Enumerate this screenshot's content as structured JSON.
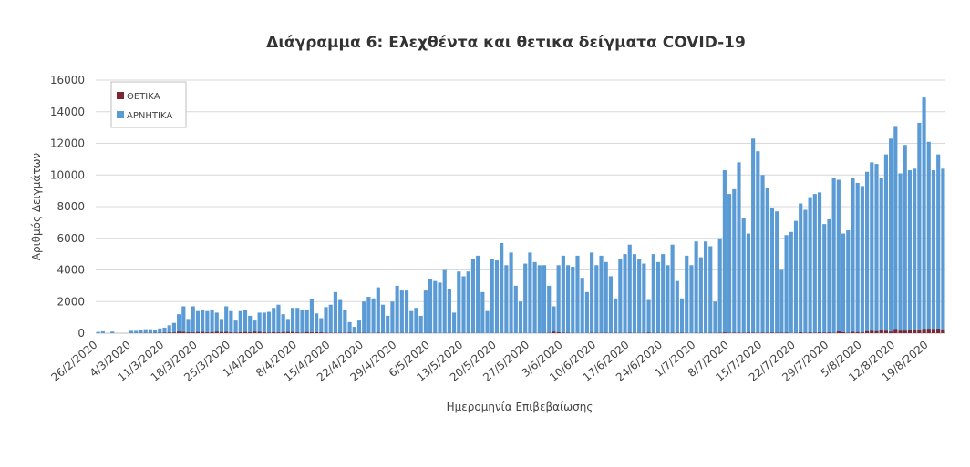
{
  "chart_data": {
    "type": "bar",
    "title": "Διάγραμμα 6: Ελεχθέντα και θετικα δείγματα COVID-19",
    "x_label": "Ημερομηνία Επιβεβαίωσης",
    "y_label": "Αριθμός Δειγμάτων",
    "ylim": [
      0,
      16000
    ],
    "yticks": [
      0,
      2000,
      4000,
      6000,
      8000,
      10000,
      12000,
      14000,
      16000
    ],
    "grid": true,
    "legend": "top-left",
    "categories": [
      "26/2/2020",
      null,
      null,
      null,
      null,
      null,
      null,
      "4/3/2020",
      null,
      null,
      null,
      null,
      null,
      null,
      "11/3/2020",
      null,
      null,
      null,
      null,
      null,
      null,
      "18/3/2020",
      null,
      null,
      null,
      null,
      null,
      null,
      "25/3/2020",
      null,
      null,
      null,
      null,
      null,
      null,
      "1/4/2020",
      null,
      null,
      null,
      null,
      null,
      null,
      "8/4/2020",
      null,
      null,
      null,
      null,
      null,
      null,
      "15/4/2020",
      null,
      null,
      null,
      null,
      null,
      null,
      "22/4/2020",
      null,
      null,
      null,
      null,
      null,
      null,
      "29/4/2020",
      null,
      null,
      null,
      null,
      null,
      null,
      "6/5/2020",
      null,
      null,
      null,
      null,
      null,
      null,
      "13/5/2020",
      null,
      null,
      null,
      null,
      null,
      null,
      "20/5/2020",
      null,
      null,
      null,
      null,
      null,
      null,
      "27/5/2020",
      null,
      null,
      null,
      null,
      null,
      null,
      "3/6/2020",
      null,
      null,
      null,
      null,
      null,
      null,
      "10/6/2020",
      null,
      null,
      null,
      null,
      null,
      null,
      "17/6/2020",
      null,
      null,
      null,
      null,
      null,
      null,
      "24/6/2020",
      null,
      null,
      null,
      null,
      null,
      null,
      "1/7/2020",
      null,
      null,
      null,
      null,
      null,
      null,
      "8/7/2020",
      null,
      null,
      null,
      null,
      null,
      null,
      "15/7/2020",
      null,
      null,
      null,
      null,
      null,
      null,
      "22/7/2020",
      null,
      null,
      null,
      null,
      null,
      null,
      "29/7/2020",
      null,
      null,
      null,
      null,
      null,
      null,
      "5/8/2020",
      null,
      null,
      null,
      null,
      null,
      null,
      "12/8/2020",
      null,
      null,
      null,
      null,
      null,
      null,
      "19/8/2020",
      null,
      null,
      null
    ],
    "series": [
      {
        "name": "ΑΡΝΗΤΙΚΑ",
        "color": "#5b9bd5",
        "values": [
          80,
          120,
          0,
          100,
          0,
          0,
          0,
          150,
          150,
          200,
          250,
          250,
          200,
          300,
          350,
          500,
          650,
          1200,
          1700,
          900,
          1700,
          1400,
          1500,
          1400,
          1500,
          1300,
          900,
          1700,
          1400,
          800,
          1400,
          1450,
          1100,
          800,
          1300,
          1300,
          1350,
          1600,
          1800,
          1200,
          900,
          1600,
          1600,
          1500,
          1500,
          2150,
          1250,
          950,
          1650,
          1800,
          2600,
          2100,
          1500,
          700,
          400,
          800,
          2000,
          2300,
          2200,
          2900,
          1800,
          1100,
          2000,
          3000,
          2700,
          2700,
          1400,
          1600,
          1100,
          2700,
          3400,
          3300,
          3200,
          4000,
          2800,
          1300,
          3900,
          3600,
          3900,
          4700,
          4900,
          2600,
          1400,
          4700,
          4600,
          5700,
          4300,
          5100,
          3000,
          2000,
          4400,
          5100,
          4500,
          4300,
          4300,
          3000,
          1700,
          4300,
          4900,
          4300,
          4200,
          4900,
          3500,
          2600,
          5100,
          4300,
          4900,
          4500,
          3600,
          2200,
          4700,
          5000,
          5600,
          5000,
          4700,
          4400,
          2100,
          5000,
          4500,
          5000,
          4300,
          5600,
          3300,
          2200,
          4900,
          4300,
          5800,
          4800,
          5800,
          5500,
          2000,
          6000,
          10300,
          8800,
          9100,
          10800,
          7300,
          6300,
          12300,
          11500,
          10000,
          9200,
          7900,
          7700,
          4000,
          6200,
          6400,
          7100,
          8200,
          7800,
          8600,
          8800,
          8900,
          6900,
          7200,
          9800,
          9700,
          6300,
          6500,
          9800,
          9500,
          9300,
          10200,
          10800,
          10700,
          9800,
          11300,
          12300,
          13100,
          10100,
          11900,
          10300,
          10400,
          13300,
          14900,
          12100,
          10300,
          11300,
          10400
        ]
      },
      {
        "name": "ΘΕΤΙΚΑ",
        "color": "#7b2630",
        "values": [
          0,
          0,
          0,
          1,
          0,
          0,
          0,
          2,
          3,
          7,
          12,
          10,
          14,
          20,
          27,
          39,
          39,
          97,
          79,
          54,
          44,
          68,
          80,
          51,
          65,
          94,
          71,
          79,
          53,
          40,
          60,
          75,
          58,
          102,
          82,
          53,
          38,
          62,
          48,
          65,
          73,
          77,
          45,
          23,
          65,
          48,
          60,
          48,
          29,
          17,
          18,
          21,
          21,
          34,
          14,
          15,
          19,
          11,
          9,
          28,
          14,
          12,
          9,
          13,
          12,
          6,
          15,
          11,
          10,
          6,
          10,
          8,
          3,
          7,
          7,
          3,
          10,
          8,
          8,
          4,
          3,
          2,
          1,
          7,
          5,
          2,
          3,
          8,
          3,
          8,
          2,
          2,
          4,
          4,
          9,
          15,
          97,
          55,
          25,
          22,
          10,
          3,
          9,
          6,
          24,
          19,
          12,
          16,
          9,
          15,
          12,
          11,
          22,
          14,
          10,
          19,
          36,
          14,
          14,
          15,
          10,
          18,
          21,
          21,
          9,
          4,
          13,
          13,
          6,
          16,
          9,
          23,
          43,
          19,
          26,
          26,
          24,
          37,
          28,
          20,
          30,
          27,
          32,
          23,
          29,
          33,
          8,
          17,
          53,
          21,
          43,
          25,
          46,
          34,
          43,
          18,
          110,
          57,
          23,
          80,
          65,
          44,
          121,
          153,
          125,
          203,
          153,
          97,
          262,
          155,
          156,
          230,
          229,
          217,
          269,
          277,
          264,
          284,
          235
        ]
      }
    ]
  }
}
